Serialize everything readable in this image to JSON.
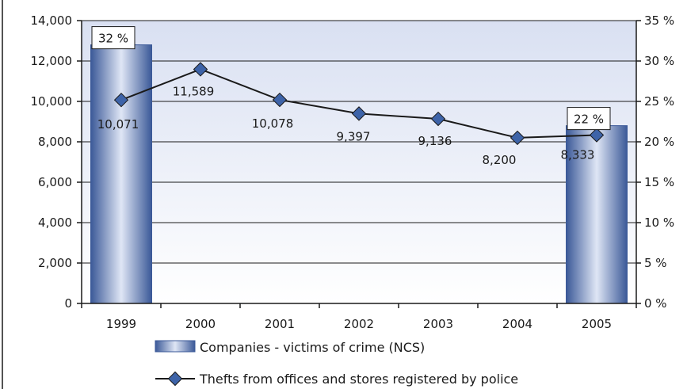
{
  "chart_data": {
    "type": "bar",
    "categories": [
      "1999",
      "2000",
      "2001",
      "2002",
      "2003",
      "2004",
      "2005"
    ],
    "bar_series": {
      "name": "Companies - victims of crime (NCS)",
      "axis": "right",
      "values": [
        32,
        null,
        null,
        null,
        null,
        null,
        22
      ],
      "value_labels": [
        "32 %",
        "",
        "",
        "",
        "",
        "",
        "22 %"
      ]
    },
    "line_series": {
      "name": "Thefts from offices and stores registered by police",
      "axis": "left",
      "values": [
        10071,
        11589,
        10078,
        9397,
        9136,
        8200,
        8333
      ],
      "value_labels": [
        "10,071",
        "11,589",
        "10,078",
        "9,397",
        "9,136",
        "8,200",
        "8,333"
      ]
    },
    "left_axis": {
      "min": 0,
      "max": 14000,
      "ticks": [
        0,
        2000,
        4000,
        6000,
        8000,
        10000,
        12000,
        14000
      ],
      "tick_labels": [
        "0",
        "2,000",
        "4,000",
        "6,000",
        "8,000",
        "10,000",
        "12,000",
        "14,000"
      ]
    },
    "right_axis": {
      "min": 0,
      "max": 35,
      "ticks": [
        0,
        5,
        10,
        15,
        20,
        25,
        30,
        35
      ],
      "tick_labels": [
        "0 %",
        "5 %",
        "10 %",
        "15 %",
        "20 %",
        "25 %",
        "30 %",
        "35 %"
      ]
    },
    "grid": true,
    "legend_position": "bottom",
    "colors": {
      "bar_dark": "#3b5998",
      "bar_light": "#dfe6f5",
      "plot_top": "#d9e0f2",
      "plot_bottom": "#ffffff",
      "line": "#1a1a1a",
      "marker": "#3d63a8",
      "grid": "#1a1a1a"
    }
  }
}
